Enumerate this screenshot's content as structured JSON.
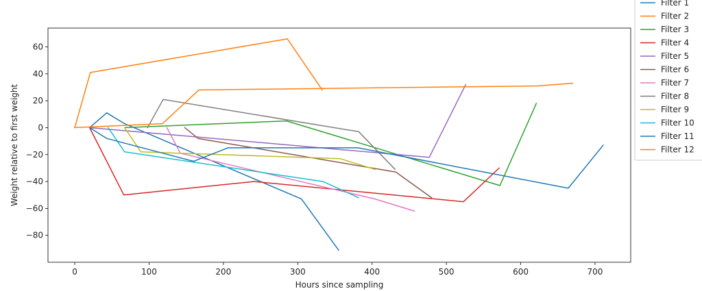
{
  "chart_data": {
    "type": "line",
    "title": "",
    "xlabel": "Hours since sampling",
    "ylabel": "Weight relative to first weight",
    "xlim": [
      -36,
      748
    ],
    "ylim": [
      -100,
      74
    ],
    "xticks": [
      0,
      100,
      200,
      300,
      400,
      500,
      600,
      700
    ],
    "yticks": [
      -80,
      -60,
      -40,
      -20,
      0,
      20,
      40,
      60
    ],
    "tick_labels_x": [
      "0",
      "100",
      "200",
      "300",
      "400",
      "500",
      "600",
      "700"
    ],
    "tick_labels_y": [
      "−80",
      "−60",
      "−40",
      "−20",
      "0",
      "20",
      "40",
      "60"
    ],
    "grid": false,
    "legend_position": "outside top-right",
    "series": [
      {
        "name": "Filter 1",
        "color": "#1f77b4",
        "x": [
          20,
          43,
          67,
          305,
          355
        ],
        "y": [
          0,
          11,
          3,
          -53,
          -91
        ]
      },
      {
        "name": "Filter 2",
        "color": "#ff7f0e",
        "x": [
          0,
          21,
          286,
          333
        ],
        "y": [
          0,
          41,
          66,
          28
        ]
      },
      {
        "name": "Filter 3",
        "color": "#2ca02c",
        "x": [
          68,
          285,
          572,
          621
        ],
        "y": [
          0,
          5,
          -43,
          18
        ]
      },
      {
        "name": "Filter 4",
        "color": "#d62728",
        "x": [
          20,
          66,
          241,
          523,
          571
        ],
        "y": [
          0,
          -50,
          -40,
          -55,
          -30
        ]
      },
      {
        "name": "Filter 5",
        "color": "#9467bd",
        "x": [
          20,
          477,
          526
        ],
        "y": [
          0,
          -22,
          32
        ]
      },
      {
        "name": "Filter 6",
        "color": "#8c564b",
        "x": [
          148,
          166,
          432,
          480
        ],
        "y": [
          0,
          -8,
          -33,
          -52
        ]
      },
      {
        "name": "Filter 7",
        "color": "#e377c2",
        "x": [
          124,
          142,
          404,
          457
        ],
        "y": [
          0,
          -19,
          -53,
          -62
        ]
      },
      {
        "name": "Filter 8",
        "color": "#7f7f7f",
        "x": [
          98,
          119,
          382,
          431
        ],
        "y": [
          0,
          21,
          -3,
          -31
        ]
      },
      {
        "name": "Filter 9",
        "color": "#bcbd22",
        "x": [
          67,
          89,
          357,
          404
        ],
        "y": [
          0,
          -18,
          -23,
          -31
        ]
      },
      {
        "name": "Filter 10",
        "color": "#17becf",
        "x": [
          45,
          67,
          334,
          382
        ],
        "y": [
          0,
          -18,
          -40,
          -52
        ]
      },
      {
        "name": "Filter 11",
        "color": "#1f77b4",
        "x": [
          20,
          43,
          160,
          206,
          381,
          664,
          711
        ],
        "y": [
          0,
          -8,
          -25,
          -15,
          -15,
          -45,
          -13
        ]
      },
      {
        "name": "Filter 12",
        "color": "#ff7f0e",
        "x": [
          0,
          118,
          167,
          623,
          670
        ],
        "y": [
          0,
          3,
          28,
          31,
          33
        ]
      }
    ]
  }
}
